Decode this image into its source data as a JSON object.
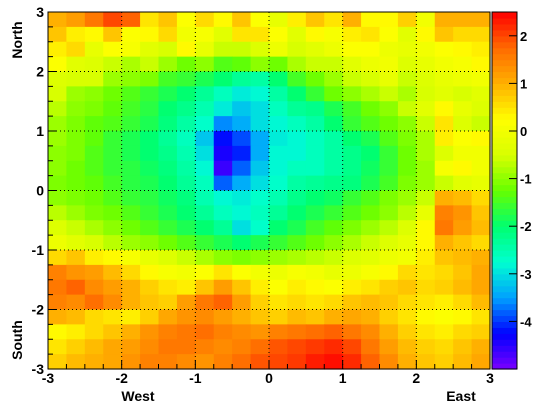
{
  "chart_data": {
    "type": "heatmap",
    "title": "",
    "x_range": [
      -3,
      3
    ],
    "y_range": [
      -3,
      3
    ],
    "x_ticks": [
      "-3",
      "-2",
      "-1",
      "0",
      "1",
      "2",
      "3"
    ],
    "y_ticks": [
      "-3",
      "-2",
      "-1",
      "0",
      "1",
      "2",
      "3"
    ],
    "x_axis_labels": {
      "left": "West",
      "right": "East"
    },
    "y_axis_labels": {
      "bottom": "South",
      "top": "North"
    },
    "grid": true,
    "colorbar": {
      "range": [
        -5,
        2.5
      ],
      "ticks": [
        "2",
        "1",
        "0",
        "-1",
        "-2",
        "-3",
        "-4"
      ],
      "stops": [
        "#7a00ff",
        "#0000ff",
        "#00a0ff",
        "#00ffd0",
        "#00ff70",
        "#66ff00",
        "#d8ff00",
        "#ffff00",
        "#ffb000",
        "#ff6a00",
        "#ff0000"
      ]
    },
    "n_cols": 24,
    "n_rows": 24,
    "x_bins": "-3 to 3, width 0.25",
    "y_bins": "3 to -3, width 0.25, listed top row first",
    "values": [
      [
        1.0,
        1.2,
        1.6,
        2.0,
        1.8,
        0.5,
        0.8,
        0.2,
        0.6,
        0.3,
        0.8,
        0.2,
        -0.2,
        0.4,
        0.8,
        0.5,
        1.0,
        0.3,
        0.3,
        0.7,
        0.0,
        1.0,
        1.0,
        1.0
      ],
      [
        0.8,
        0.4,
        0.3,
        0.8,
        0.2,
        0.3,
        0.6,
        0.0,
        0.1,
        -0.3,
        0.5,
        0.5,
        0.2,
        -0.3,
        0.3,
        0.1,
        0.4,
        0.5,
        0.2,
        -0.3,
        0.3,
        0.8,
        0.6,
        0.6
      ],
      [
        0.4,
        0.6,
        -0.2,
        0.2,
        0.1,
        -0.3,
        -0.5,
        0.3,
        -0.2,
        -0.6,
        -0.6,
        -0.4,
        -0.1,
        -0.5,
        -0.3,
        -0.1,
        0.2,
        0.2,
        -0.1,
        -0.2,
        0.0,
        0.2,
        0.3,
        0.4
      ],
      [
        0.2,
        -0.3,
        -0.4,
        -0.6,
        -0.8,
        -0.6,
        -0.9,
        -1.2,
        -1.0,
        -1.4,
        -1.3,
        -1.0,
        -1.2,
        -0.8,
        -0.6,
        -0.6,
        -0.3,
        -0.1,
        0.0,
        -0.4,
        -0.2,
        0.0,
        0.1,
        0.3
      ],
      [
        -0.4,
        -0.5,
        -0.5,
        -0.9,
        -1.0,
        -1.1,
        -1.5,
        -1.6,
        -1.8,
        -2.0,
        -2.3,
        -2.4,
        -2.0,
        -1.5,
        -1.2,
        -0.9,
        -0.6,
        -0.5,
        -0.2,
        -0.6,
        -0.4,
        -0.2,
        -0.1,
        0.0
      ],
      [
        -0.5,
        -0.9,
        -1.0,
        -1.2,
        -1.4,
        -1.6,
        -1.8,
        -2.0,
        -2.3,
        -2.6,
        -2.9,
        -2.8,
        -2.4,
        -2.0,
        -1.6,
        -1.2,
        -1.0,
        -0.8,
        -0.6,
        -0.8,
        -0.5,
        -0.3,
        -0.5,
        -0.3
      ],
      [
        -0.7,
        -1.0,
        -1.1,
        -1.3,
        -1.5,
        -1.7,
        -2.0,
        -2.2,
        -2.5,
        -2.9,
        -3.2,
        -3.0,
        -2.6,
        -2.3,
        -2.2,
        -1.8,
        -1.5,
        -1.2,
        -1.0,
        -0.6,
        -0.3,
        0.3,
        -0.2,
        -0.4
      ],
      [
        -0.9,
        -1.1,
        -1.3,
        -1.4,
        -1.6,
        -1.8,
        -2.1,
        -2.4,
        -2.7,
        -3.6,
        -3.4,
        -3.0,
        -2.8,
        -2.6,
        -2.4,
        -2.0,
        -1.6,
        -1.4,
        -1.2,
        -1.0,
        -0.6,
        0.5,
        -0.4,
        -0.6
      ],
      [
        -0.9,
        -1.1,
        -1.3,
        -1.6,
        -1.8,
        -2.0,
        -2.3,
        -2.6,
        -3.2,
        -4.2,
        -3.9,
        -3.4,
        -2.9,
        -2.8,
        -2.6,
        -2.4,
        -2.0,
        -1.8,
        -1.4,
        -1.1,
        -0.8,
        0.4,
        0.2,
        0.3
      ],
      [
        -1.0,
        -1.1,
        -1.4,
        -1.6,
        -1.8,
        -2.0,
        -2.2,
        -2.5,
        -3.0,
        -4.4,
        -4.1,
        -3.4,
        -2.8,
        -2.8,
        -2.6,
        -2.4,
        -2.2,
        -2.0,
        -1.6,
        -1.2,
        -0.8,
        -0.4,
        0.0,
        0.0
      ],
      [
        -1.0,
        -1.2,
        -1.4,
        -1.6,
        -1.7,
        -1.9,
        -2.1,
        -2.4,
        -2.8,
        -4.6,
        -3.8,
        -3.2,
        -2.8,
        -2.6,
        -2.6,
        -2.4,
        -2.2,
        -1.9,
        -1.6,
        -1.2,
        -0.9,
        0.1,
        0.3,
        0.0
      ],
      [
        -1.1,
        -1.2,
        -1.3,
        -1.5,
        -1.7,
        -1.8,
        -2.0,
        -2.3,
        -2.6,
        -3.8,
        -3.4,
        -3.0,
        -2.7,
        -2.4,
        -2.3,
        -2.2,
        -2.1,
        -1.8,
        -1.5,
        -1.1,
        -0.9,
        -0.6,
        -0.3,
        -0.2
      ],
      [
        -1.0,
        -1.1,
        -1.2,
        -1.4,
        -1.6,
        -1.7,
        -1.9,
        -2.1,
        -2.5,
        -2.8,
        -2.9,
        -2.7,
        -2.5,
        -2.2,
        -2.0,
        -1.9,
        -1.6,
        -1.4,
        -1.1,
        -0.9,
        -0.6,
        1.0,
        0.9,
        0.6
      ],
      [
        -0.7,
        -0.9,
        -1.1,
        -1.2,
        -1.4,
        -1.6,
        -1.8,
        -2.0,
        -2.3,
        -2.6,
        -2.8,
        -2.6,
        -2.3,
        -2.0,
        -1.8,
        -1.6,
        -1.4,
        -1.2,
        -1.0,
        -0.7,
        -0.2,
        1.5,
        1.3,
        0.8
      ],
      [
        -0.4,
        -0.6,
        -0.8,
        -1.0,
        -1.2,
        -1.4,
        -1.6,
        -1.8,
        -2.0,
        -2.3,
        -3.0,
        -2.7,
        -2.0,
        -1.8,
        -1.5,
        -1.3,
        -1.1,
        -0.9,
        -0.7,
        -0.4,
        0.3,
        1.6,
        1.2,
        0.9
      ],
      [
        -0.1,
        -0.3,
        -0.5,
        -0.7,
        -0.9,
        -1.0,
        -1.2,
        -1.4,
        -1.6,
        -1.8,
        -2.0,
        -1.8,
        -1.6,
        -1.4,
        -1.2,
        -1.0,
        -0.8,
        -0.6,
        -0.4,
        -0.2,
        0.3,
        1.0,
        0.8,
        0.6
      ],
      [
        0.6,
        0.8,
        0.4,
        0.3,
        0.1,
        -0.2,
        -0.4,
        -0.6,
        -0.8,
        -1.0,
        -1.1,
        -1.0,
        -0.9,
        -0.8,
        -0.7,
        -0.6,
        -0.4,
        -0.3,
        -0.1,
        0.0,
        0.4,
        0.8,
        0.9,
        1.0
      ],
      [
        1.5,
        1.3,
        1.2,
        0.9,
        0.6,
        0.3,
        0.1,
        0.0,
        0.2,
        0.5,
        0.2,
        0.0,
        -0.1,
        0.1,
        0.0,
        -0.2,
        -0.1,
        0.1,
        0.3,
        0.6,
        0.5,
        0.6,
        0.8,
        1.1
      ],
      [
        1.6,
        1.8,
        1.4,
        1.2,
        1.0,
        0.7,
        0.5,
        0.4,
        0.8,
        1.2,
        0.8,
        0.4,
        0.2,
        0.4,
        0.3,
        0.2,
        0.4,
        0.5,
        0.7,
        0.8,
        0.6,
        0.7,
        0.9,
        1.1
      ],
      [
        1.5,
        1.4,
        1.7,
        1.4,
        1.0,
        0.8,
        0.7,
        1.2,
        1.6,
        1.8,
        1.2,
        0.7,
        0.5,
        0.6,
        0.5,
        0.6,
        0.8,
        0.9,
        0.8,
        0.6,
        0.5,
        0.4,
        0.6,
        0.9
      ],
      [
        1.0,
        0.9,
        0.6,
        0.5,
        0.4,
        0.7,
        1.1,
        1.3,
        1.4,
        1.2,
        1.0,
        0.8,
        0.7,
        0.9,
        0.8,
        1.0,
        1.1,
        1.0,
        0.7,
        0.5,
        0.3,
        0.2,
        0.3,
        0.5
      ],
      [
        0.3,
        0.4,
        0.6,
        0.8,
        1.0,
        1.3,
        1.5,
        1.6,
        1.7,
        1.5,
        1.4,
        1.3,
        1.5,
        1.6,
        1.7,
        1.8,
        1.6,
        1.4,
        1.0,
        0.7,
        0.5,
        0.4,
        0.6,
        0.7
      ],
      [
        0.5,
        0.7,
        0.9,
        1.1,
        1.2,
        1.4,
        1.6,
        1.6,
        1.5,
        1.4,
        1.5,
        1.7,
        1.9,
        2.0,
        2.1,
        2.2,
        2.0,
        1.6,
        1.2,
        0.9,
        0.7,
        0.6,
        0.8,
        1.0
      ],
      [
        0.7,
        0.9,
        1.0,
        1.1,
        1.3,
        1.5,
        1.5,
        1.4,
        1.3,
        1.5,
        1.7,
        1.9,
        2.0,
        2.1,
        2.3,
        2.4,
        2.2,
        1.8,
        1.4,
        1.0,
        0.8,
        0.7,
        0.9,
        1.1
      ]
    ]
  }
}
